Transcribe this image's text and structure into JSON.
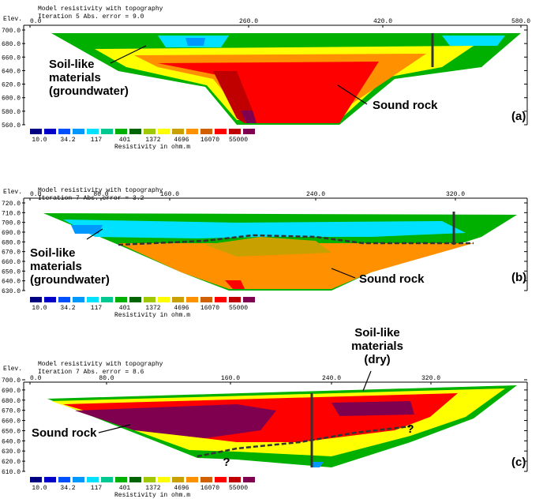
{
  "panels": [
    {
      "title_lines": [
        "Model resistivity with topography",
        "Iteration 5 Abs. error = 9.0"
      ],
      "elev_label": "Elev.",
      "y_ticks": [
        "700.0",
        "680.0",
        "660.0",
        "640.0",
        "620.0",
        "600.0",
        "580.0",
        "560.0"
      ],
      "x_ticks": [
        "0.0",
        "260.0",
        "420.0",
        "580.0"
      ],
      "scale_labels": [
        "10.0",
        "34.2",
        "117",
        "401",
        "1372",
        "4696",
        "16070",
        "55000"
      ],
      "scale_caption": "Resistivity in ohm.m",
      "annotations": [
        {
          "lines": [
            "Soil-like",
            "materials",
            "(groundwater)"
          ]
        },
        {
          "lines": [
            "Sound rock"
          ]
        }
      ],
      "panel_label": "(a)"
    },
    {
      "title_lines": [
        "Model resistivity with topography",
        "Iteration 7 Abs. error = 3.2"
      ],
      "elev_label": "Elev.",
      "y_ticks": [
        "720.0",
        "710.0",
        "700.0",
        "690.0",
        "680.0",
        "670.0",
        "660.0",
        "650.0",
        "640.0",
        "630.0"
      ],
      "x_ticks": [
        "0.0",
        "80.0",
        "160.0",
        "240.0",
        "320.0"
      ],
      "scale_labels": [
        "10.0",
        "34.2",
        "117",
        "401",
        "1372",
        "4696",
        "16070",
        "55000"
      ],
      "scale_caption": "Resistivity in ohm.m",
      "annotations": [
        {
          "lines": [
            "Soil-like",
            "materials",
            "(groundwater)"
          ]
        },
        {
          "lines": [
            "Sound rock"
          ]
        }
      ],
      "panel_label": "(b)"
    },
    {
      "title_lines": [
        "Model resistivity with topography",
        "Iteration 7 Abs. error = 8.6"
      ],
      "elev_label": "Elev.",
      "y_ticks": [
        "700.0",
        "690.0",
        "680.0",
        "670.0",
        "660.0",
        "650.0",
        "640.0",
        "630.0",
        "620.0",
        "610.0"
      ],
      "x_ticks": [
        "0.0",
        "80.0",
        "160.0",
        "240.0",
        "320.0"
      ],
      "scale_labels": [
        "10.0",
        "34.2",
        "117",
        "401",
        "1372",
        "4696",
        "16070",
        "55000"
      ],
      "scale_caption": "Resistivity in ohm.m",
      "annotations": [
        {
          "lines": [
            "Sound rock"
          ]
        },
        {
          "lines": [
            "Soil-like",
            "materials",
            "(dry)"
          ]
        },
        {
          "lines": [
            "?"
          ]
        },
        {
          "lines": [
            "?"
          ]
        }
      ],
      "panel_label": "(c)"
    }
  ]
}
